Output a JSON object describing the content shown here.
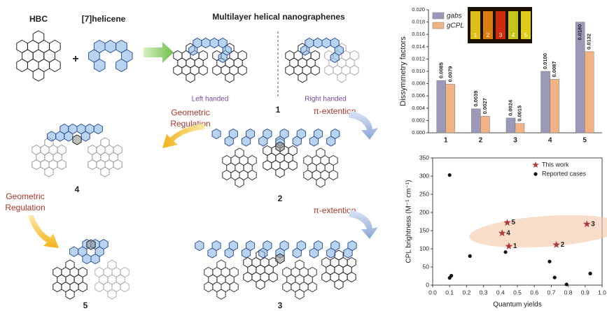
{
  "diagram": {
    "hbc": "HBC",
    "helicene": "[7]helicene",
    "plus": "+",
    "title": "Multilayer helical nanographenes",
    "left_handed": "Left handed",
    "right_handed": "Right handed",
    "extension_1": "π-extention",
    "extension_2": "π-extention",
    "regulation_1": [
      "Geometric",
      "Regulation"
    ],
    "regulation_2": [
      "Geometric",
      "Regulation"
    ],
    "labels": [
      "1",
      "2",
      "3",
      "4",
      "5"
    ]
  },
  "chart_data": [
    {
      "type": "bar",
      "y_label": "Dissymmetry factors",
      "categories": [
        "1",
        "2",
        "3",
        "4",
        "5"
      ],
      "series": [
        {
          "name": "gabs",
          "color": "#9a9ab8",
          "values": [
            0.0085,
            0.0039,
            0.0024,
            0.01,
            0.018
          ],
          "value_labels": [
            "0.0085",
            "0.0039",
            "0.0024",
            "0.0100",
            "0.0180"
          ]
        },
        {
          "name": "gCPL",
          "color": "#f2b384",
          "values": [
            0.0079,
            0.0027,
            0.0015,
            0.0087,
            0.0132
          ],
          "value_labels": [
            "0.0079",
            "0.0027",
            "0.0015",
            "0.0087",
            "0.0132"
          ]
        }
      ],
      "ylim": [
        0,
        0.02
      ],
      "yticks": [
        {
          "value": 0,
          "label": "0.000"
        },
        {
          "value": 0.002,
          "label": "0.002"
        },
        {
          "value": 0.004,
          "label": "0.004"
        },
        {
          "value": 0.006,
          "label": "0.006"
        },
        {
          "value": 0.008,
          "label": "0.008"
        },
        {
          "value": 0.01,
          "label": "0.010"
        },
        {
          "value": 0.012,
          "label": "0.012"
        },
        {
          "value": 0.014,
          "label": "0.014"
        },
        {
          "value": 0.016,
          "label": "0.016"
        },
        {
          "value": 0.018,
          "label": "0.018"
        },
        {
          "value": 0.02,
          "label": "0.020"
        }
      ],
      "inset_labels": [
        "1",
        "2",
        "3",
        "4",
        "5"
      ],
      "legend": "upper left",
      "grid": false
    },
    {
      "type": "scatter",
      "x_label": "Quantum yields",
      "y_label": "CPL brightness (M⁻¹ cm⁻¹)",
      "series": [
        {
          "name": "This work",
          "color": "#b33a3a",
          "marker": "star",
          "x": [
            0.45,
            0.73,
            0.91,
            0.41,
            0.44
          ],
          "values": [
            107,
            111,
            168,
            143,
            172
          ],
          "point_labels": [
            "1",
            "2",
            "3",
            "4",
            "5"
          ]
        },
        {
          "name": "Reported cases",
          "color": "#111111",
          "marker": "circle",
          "x": [
            0.1,
            0.1,
            0.11,
            0.22,
            0.43,
            0.69,
            0.72,
            0.79,
            0.93
          ],
          "values": [
            303,
            20,
            26,
            80,
            91,
            65,
            21,
            2,
            32
          ]
        }
      ],
      "xlim": [
        0,
        1
      ],
      "ylim": [
        0,
        350
      ],
      "xticks": [
        {
          "value": 0,
          "label": "0.0"
        },
        {
          "value": 0.1,
          "label": "0.1"
        },
        {
          "value": 0.2,
          "label": "0.2"
        },
        {
          "value": 0.3,
          "label": "0.3"
        },
        {
          "value": 0.4,
          "label": "0.4"
        },
        {
          "value": 0.5,
          "label": "0.5"
        },
        {
          "value": 0.6,
          "label": "0.6"
        },
        {
          "value": 0.7,
          "label": "0.7"
        },
        {
          "value": 0.8,
          "label": "0.8"
        },
        {
          "value": 0.9,
          "label": "0.9"
        },
        {
          "value": 1,
          "label": "1.0"
        }
      ],
      "yticks": [
        0,
        50,
        100,
        150,
        200,
        250,
        300,
        350
      ],
      "legend": "upper right",
      "grid": false
    }
  ]
}
